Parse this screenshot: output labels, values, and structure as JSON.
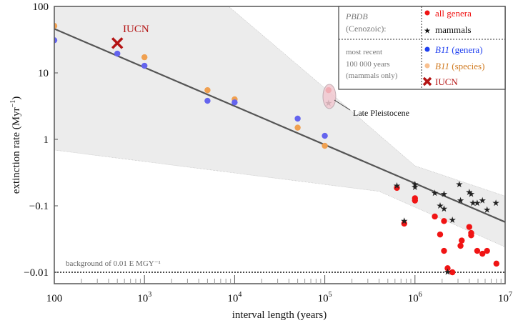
{
  "chart_data": {
    "type": "scatter",
    "xscale": "log",
    "yscale": "log",
    "xlabel": "interval length (years)",
    "ylabel_main": "extinction rate (Myr",
    "ylabel_sup": "−1",
    "ylabel_close": ")",
    "xlim": [
      100,
      10000000
    ],
    "ylim": [
      0.0065,
      100
    ],
    "x_ticks": [
      {
        "value": 100,
        "base": "100",
        "exp": ""
      },
      {
        "value": 1000,
        "base": "10",
        "exp": "3"
      },
      {
        "value": 10000,
        "base": "10",
        "exp": "4"
      },
      {
        "value": 100000,
        "base": "10",
        "exp": "5"
      },
      {
        "value": 1000000,
        "base": "10",
        "exp": "6"
      },
      {
        "value": 10000000,
        "base": "10",
        "exp": "7"
      }
    ],
    "y_ticks": [
      {
        "value": 100,
        "label": "100"
      },
      {
        "value": 10,
        "label": "10"
      },
      {
        "value": 1,
        "label": "1"
      },
      {
        "value": 0.1,
        "label": "−0.1"
      },
      {
        "value": 0.01,
        "label": "−0.01"
      }
    ],
    "fit_line": {
      "x": [
        100,
        10000000
      ],
      "y": [
        46,
        0.057
      ]
    },
    "confidence_band": {
      "upper": {
        "x": [
          100,
          100000,
          1000000,
          10000000
        ],
        "y": [
          17000,
          5.9,
          0.4,
          0.14
        ]
      },
      "lower": {
        "x": [
          100,
          400000,
          10000000
        ],
        "y": [
          0.69,
          0.165,
          0.024
        ]
      }
    },
    "background_line": {
      "y": 0.01,
      "label": "background of 0.01 E MGY⁻¹"
    },
    "series": [
      {
        "name": "B11 (genera)",
        "key": "b11_genera",
        "marker": "circle",
        "color": "#6464ee",
        "x": [
          100,
          500,
          1000,
          5000,
          10000,
          50000,
          100000
        ],
        "y": [
          31,
          19.5,
          12.8,
          3.8,
          3.6,
          2.05,
          1.13
        ]
      },
      {
        "name": "B11 (species)",
        "key": "b11_species",
        "marker": "circle",
        "color": "#f0a050",
        "x": [
          100,
          1000,
          5000,
          10000,
          50000,
          100000
        ],
        "y": [
          51,
          17.2,
          5.5,
          4.0,
          1.5,
          0.8
        ]
      },
      {
        "name": "all genera",
        "key": "pbdb_genera",
        "marker": "circle",
        "color": "#f01414",
        "x": [
          630000,
          1000000,
          1000000,
          760000,
          1660000,
          2100000,
          1900000,
          2100000,
          2300000,
          2600000,
          4000000,
          4200000,
          4200000,
          3300000,
          3200000,
          4900000,
          5600000,
          6300000,
          8000000,
          110000
        ],
        "y": [
          0.186,
          0.13,
          0.12,
          0.054,
          0.069,
          0.059,
          0.037,
          0.021,
          0.0115,
          0.01,
          0.048,
          0.039,
          0.036,
          0.03,
          0.025,
          0.021,
          0.019,
          0.021,
          0.0135,
          5.5
        ]
      },
      {
        "name": "mammals",
        "key": "pbdb_mammals",
        "marker": "star",
        "color": "#222222",
        "x": [
          630000,
          1000000,
          1000000,
          760000,
          1660000,
          2100000,
          3100000,
          4000000,
          4200000,
          3200000,
          4400000,
          4900000,
          5600000,
          7900000,
          6300000,
          1900000,
          2100000,
          2600000,
          2300000,
          110000
        ],
        "y": [
          0.2,
          0.21,
          0.19,
          0.059,
          0.155,
          0.15,
          0.21,
          0.16,
          0.15,
          0.12,
          0.11,
          0.11,
          0.12,
          0.11,
          0.087,
          0.1,
          0.09,
          0.061,
          0.0101,
          3.5
        ]
      },
      {
        "name": "IUCN",
        "key": "iucn",
        "marker": "x",
        "color": "#b41414",
        "x": [
          500
        ],
        "y": [
          28
        ]
      }
    ],
    "annotations": [
      {
        "text": "IUCN",
        "color": "#b41414"
      },
      {
        "text": "Late Pleistocene"
      }
    ],
    "legend": {
      "placement": "top-right",
      "group1_title_italic": "PBDB",
      "group1_title_rest": "(Cenozoic):",
      "group2_lines": [
        "most recent",
        "100 000 years",
        "(mammals only)"
      ],
      "entries": [
        {
          "series": "pbdb_genera",
          "label": "all genera",
          "italic": "",
          "color": "#f01414"
        },
        {
          "series": "pbdb_mammals",
          "label": "mammals",
          "italic": "",
          "color": "#111111"
        },
        {
          "series": "b11_genera",
          "label": " (genera)",
          "italic": "B11",
          "color": "#2040f0"
        },
        {
          "series": "b11_species",
          "label": " (species)",
          "italic": "B11",
          "color": "#d07a20"
        },
        {
          "series": "iucn",
          "label": "IUCN",
          "italic": "",
          "color": "#b41414"
        }
      ]
    }
  }
}
